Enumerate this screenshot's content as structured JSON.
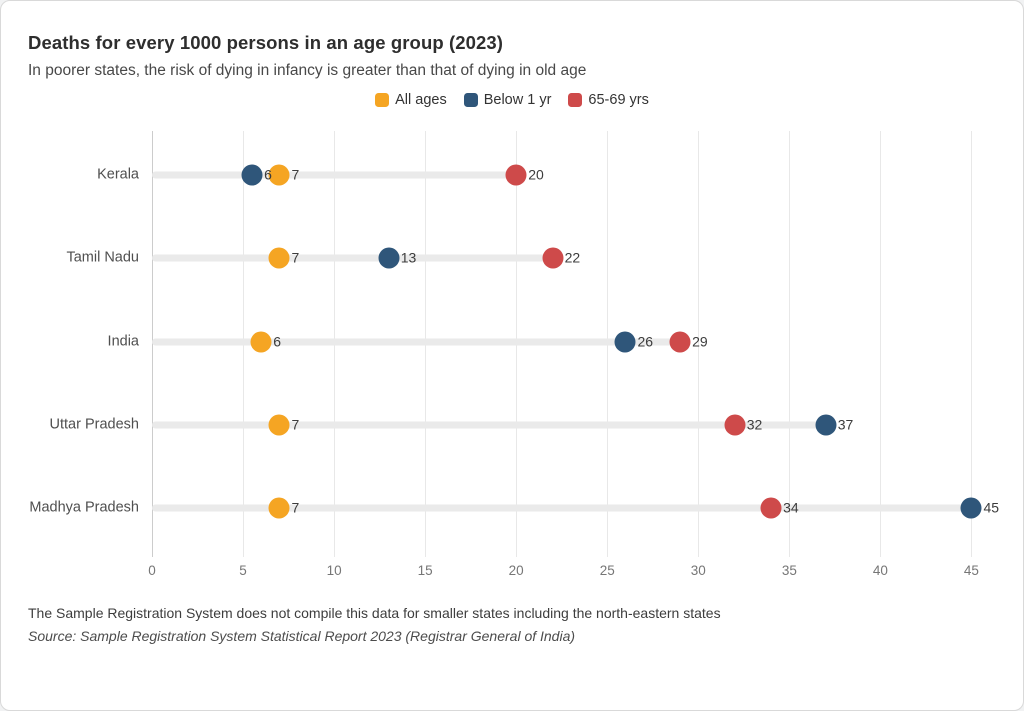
{
  "header": {
    "title": "Deaths for every 1000 persons in an age group (2023)",
    "subtitle": "In poorer states, the risk of dying in infancy is greater than that of dying in old age"
  },
  "footer": {
    "note": "The Sample Registration System does not compile this data for smaller states including the north-eastern states",
    "source": "Source: Sample Registration System Statistical Report 2023 (Registrar General of India)"
  },
  "chart_data": {
    "type": "scatter",
    "subtype": "horizontal-dot-plot",
    "title": "Deaths for every 1000 persons in an age group (2023)",
    "categories": [
      "Kerala",
      "Tamil Nadu",
      "India",
      "Uttar Pradesh",
      "Madhya Pradesh"
    ],
    "series": [
      {
        "name": "All ages",
        "color": "#F5A523",
        "values": [
          7,
          7,
          6,
          7,
          7
        ],
        "x": [
          7,
          7,
          6,
          7,
          7
        ]
      },
      {
        "name": "Below 1 yr",
        "color": "#2F567A",
        "values": [
          6,
          13,
          26,
          37,
          45
        ],
        "x": [
          5.5,
          13,
          26,
          37,
          45
        ]
      },
      {
        "name": "65-69 yrs",
        "color": "#CE4A4A",
        "values": [
          20,
          22,
          29,
          32,
          34
        ],
        "x": [
          20,
          22,
          29,
          32,
          34
        ]
      }
    ],
    "xlabel": "",
    "ylabel": "",
    "xlim": [
      0,
      46
    ],
    "xticks": [
      0,
      5,
      10,
      15,
      20,
      25,
      30,
      35,
      40,
      45
    ],
    "grid": "vertical",
    "legend_position": "top-center",
    "track_color": "#EAEAEA",
    "gridline_color": "#E8E8E8",
    "zeroline_color": "#CCCCCC"
  }
}
